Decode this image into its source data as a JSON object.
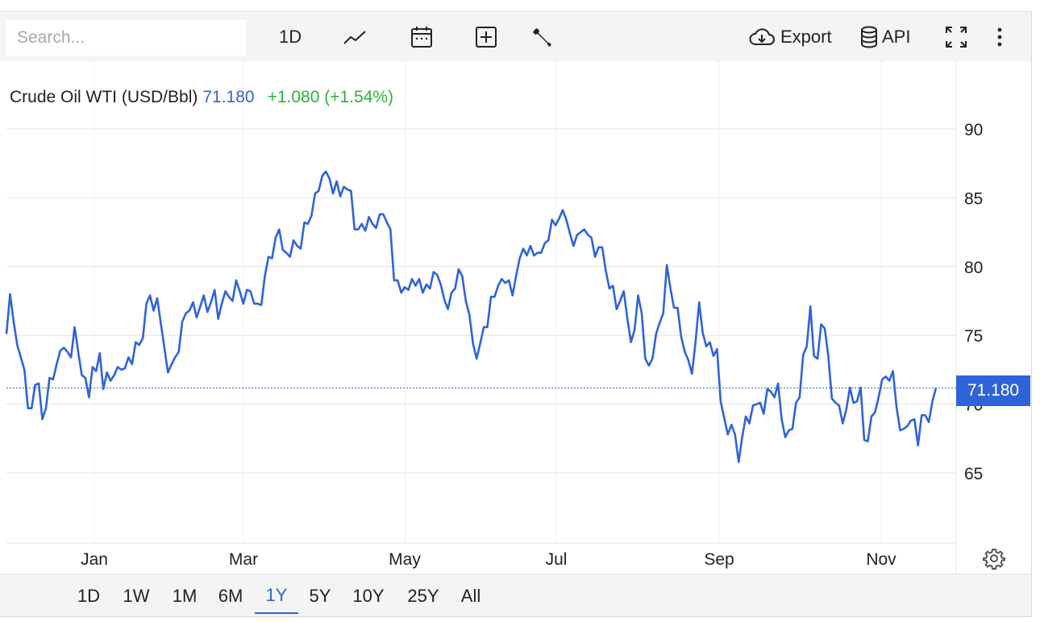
{
  "toolbar": {
    "search_placeholder": "Search...",
    "interval_label": "1D",
    "export_label": "Export",
    "api_label": "API",
    "icons": [
      "line-chart-icon",
      "calendar-icon",
      "add-indicator-icon",
      "wrench-icon",
      "cloud-download-icon",
      "database-icon",
      "fullscreen-icon",
      "more-vertical-icon"
    ]
  },
  "quote": {
    "name": "Crude Oil WTI (USD/Bbl)",
    "price": "71.180",
    "change": "+1.080 (+1.54%)",
    "price_color": "#2f63d8",
    "change_color": "#2bb33a"
  },
  "price_tag": "71.180",
  "ranges": [
    {
      "label": "1D"
    },
    {
      "label": "1W"
    },
    {
      "label": "1M"
    },
    {
      "label": "6M"
    },
    {
      "label": "1Y",
      "active": true
    },
    {
      "label": "5Y"
    },
    {
      "label": "10Y"
    },
    {
      "label": "25Y"
    },
    {
      "label": "All"
    }
  ],
  "chart_data": {
    "type": "line",
    "ylim": [
      60,
      95
    ],
    "yticks": [
      65,
      70,
      75,
      80,
      85,
      90
    ],
    "y_axis_side": "right",
    "xticks": [
      "Jan",
      "Mar",
      "May",
      "Jul",
      "Sep",
      "Nov"
    ],
    "grid": true,
    "line_color": "#2f63d8",
    "last_value": 71.18,
    "series": [
      {
        "values": [
          75.1,
          78,
          76,
          74.3,
          73.4,
          72.5,
          69.7,
          69.7,
          71.4,
          71.5,
          68.9,
          69.7,
          71.9,
          71.8,
          72.9,
          73.9,
          74.1,
          73.8,
          73.4,
          75.6,
          73.8,
          72.1,
          71.9,
          70.5,
          72.7,
          72.4,
          73.7,
          71.1,
          72.3,
          71.7,
          72.1,
          72.7,
          72.5,
          72.6,
          73.4,
          72.9,
          74.5,
          74.3,
          74.8,
          77.3,
          77.9,
          76.8,
          77.7,
          75.9,
          74.1,
          72.3,
          72.9,
          73.4,
          73.8,
          76,
          76.6,
          76.8,
          77.4,
          76.3,
          77.1,
          77.9,
          76.7,
          77.4,
          78.3,
          76.2,
          77.3,
          78.2,
          77.8,
          77.5,
          79,
          78.2,
          77.3,
          78.3,
          78.2,
          77.3,
          77.3,
          77.2,
          79.3,
          80.7,
          80.6,
          82.1,
          82.7,
          81.2,
          81,
          80.7,
          81.9,
          81.5,
          81.3,
          83.2,
          83.1,
          83.7,
          85.3,
          85.5,
          86.6,
          86.9,
          86.4,
          85.3,
          86.2,
          85.1,
          85.8,
          85.6,
          85.5,
          82.7,
          82.7,
          83.1,
          82.6,
          83.6,
          83.1,
          82.8,
          83.8,
          83.8,
          83.2,
          82.7,
          79,
          79,
          78.1,
          78.5,
          78.3,
          79.1,
          78.6,
          79.1,
          78.1,
          78.7,
          78.4,
          79.6,
          79.4,
          78.7,
          77.6,
          76.9,
          78.1,
          78.4,
          79.8,
          79.3,
          77.5,
          76.5,
          74.4,
          73.3,
          74.4,
          75.6,
          75.6,
          77.8,
          77.8,
          78.6,
          79.1,
          78.8,
          79,
          77.9,
          79.3,
          80.6,
          81.3,
          80.8,
          81.5,
          80.8,
          81,
          81,
          81.7,
          81.9,
          83.4,
          83,
          83.5,
          84.1,
          83.4,
          82.4,
          81.5,
          82.3,
          82.5,
          82.7,
          82.3,
          82.1,
          80.7,
          81.4,
          81.4,
          79.7,
          78.4,
          78.6,
          76.9,
          77.5,
          78.2,
          76.2,
          74.5,
          75.4,
          77.9,
          76.6,
          73.3,
          72.8,
          73.3,
          75.1,
          75.9,
          76.6,
          80.1,
          78.4,
          77,
          77,
          74.9,
          73.8,
          73.2,
          72.2,
          74.5,
          77.4,
          75.2,
          74.2,
          74.5,
          73.5,
          74,
          70.2,
          69,
          67.8,
          68.5,
          67.8,
          65.8,
          67.6,
          69.1,
          68.6,
          69.9,
          70,
          70.1,
          69.3,
          71.1,
          70.9,
          70.5,
          71.5,
          68.9,
          67.6,
          68.1,
          68.2,
          70.1,
          70.5,
          73.6,
          74.2,
          77.1,
          73.5,
          73.3,
          75.8,
          75.5,
          73.5,
          70.4,
          70.1,
          69.9,
          68.6,
          69.6,
          71.2,
          70.1,
          70.2,
          71.2,
          67.4,
          67.3,
          69.1,
          69.4,
          70.5,
          71.8,
          72,
          71.7,
          72.4,
          69.8,
          68.1,
          68.2,
          68.4,
          68.8,
          68.9,
          67,
          69.2,
          69.2,
          68.7,
          70.2,
          71.18
        ]
      }
    ]
  }
}
